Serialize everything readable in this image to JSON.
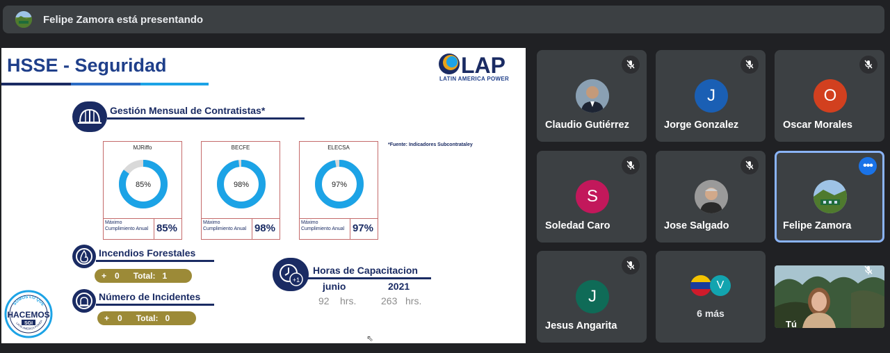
{
  "presenter": {
    "text": "Felipe Zamora está presentando"
  },
  "slide": {
    "title": "HSSE - Seguridad",
    "logo_text": "LAP",
    "logo_subtitle": "LATIN AMERICA POWER",
    "contractors": {
      "title": "Gestión Mensual de Contratistas*",
      "footnote": "*Fuente: Indicadores Subcontrataley",
      "cards": [
        {
          "name": "MJRiffo",
          "percent_label": "85%",
          "value": 0.85,
          "label": "Máximo Cumplimiento Anual",
          "annual": "85%"
        },
        {
          "name": "BECFE",
          "percent_label": "98%",
          "value": 0.98,
          "label": "Máximo Cumplimiento Anual",
          "annual": "98%"
        },
        {
          "name": "ELECSA",
          "percent_label": "97%",
          "value": 0.97,
          "label": "Máximo Cumplimiento Anual",
          "annual": "97%"
        }
      ]
    },
    "fires": {
      "title": "Incendios Forestales",
      "plus": "+",
      "count": "0",
      "total_label": "Total:",
      "total": "1"
    },
    "incidents": {
      "title": "Número de Incidentes",
      "plus": "+",
      "count": "0",
      "total_label": "Total:",
      "total": "0"
    },
    "training": {
      "title": "Horas de Capacitacion",
      "icon_text": "+1",
      "col1_head": "junio",
      "col1_value": "92",
      "col1_unit": "hrs.",
      "col2_head": "2021",
      "col2_value": "263",
      "col2_unit": "hrs."
    },
    "badge": {
      "top_text": "SOMOS LO QUE",
      "main_text": "HACEMOS",
      "sgi": "SGI",
      "bottom_text": "LATIN AMERICA POWER"
    }
  },
  "participants": [
    {
      "name": "Claudio Gutiérrez",
      "initial": "",
      "color": "#5f6368",
      "photo": true
    },
    {
      "name": "Jorge Gonzalez",
      "initial": "J",
      "color": "#1a5fb4"
    },
    {
      "name": "Oscar Morales",
      "initial": "O",
      "color": "#d2401f"
    },
    {
      "name": "Soledad Caro",
      "initial": "S",
      "color": "#c2185b"
    },
    {
      "name": "Jose Salgado",
      "initial": "",
      "color": "#777",
      "photo": true
    },
    {
      "name": "Felipe Zamora",
      "initial": "",
      "color": "#6b8e3a",
      "photo": true
    },
    {
      "name": "Jesus Angarita",
      "initial": "J",
      "color": "#0f6b57"
    }
  ],
  "more_tile": {
    "label": "6 más",
    "initial": "V",
    "initial_color": "#12a4af"
  },
  "self_tile": {
    "label": "Tú"
  },
  "colors": {
    "accent": "#1a73e8",
    "tile_bg": "#3c4043",
    "donut": "#1ca3e6",
    "donut_track": "#d9d9d9",
    "navy": "#1a2b63",
    "gold": "#9c8a37"
  }
}
